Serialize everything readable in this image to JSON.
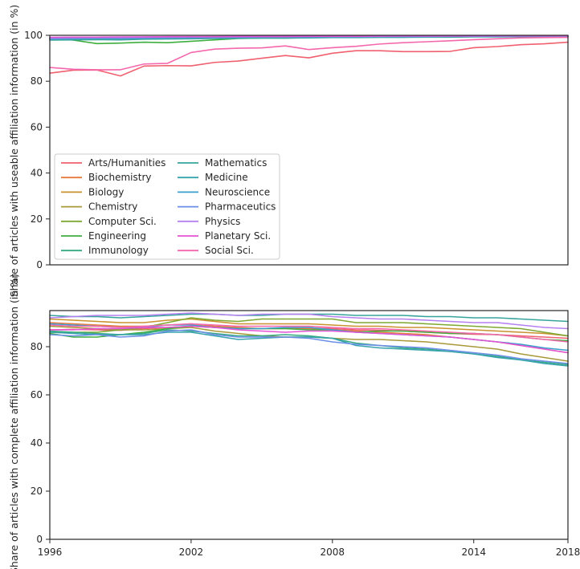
{
  "chart_data": [
    {
      "type": "line",
      "ylabel": "Share of articles with useable affiliation information (in %)",
      "xlabel": "",
      "xlim": [
        1996,
        2018
      ],
      "ylim": [
        0,
        100
      ],
      "yticks": [
        0,
        20,
        40,
        60,
        80,
        100
      ],
      "legend": "lower-left",
      "legend_columns": 2,
      "x": [
        1996,
        1997,
        1998,
        1999,
        2000,
        2001,
        2002,
        2003,
        2004,
        2005,
        2006,
        2007,
        2008,
        2009,
        2010,
        2011,
        2012,
        2013,
        2014,
        2015,
        2016,
        2017,
        2018
      ],
      "series": [
        {
          "name": "Arts/Humanities",
          "color": "#f0606f",
          "values": [
            83.5,
            84.8,
            84.9,
            82.3,
            86.6,
            86.8,
            86.7,
            88.2,
            88.8,
            90.0,
            91.2,
            90.2,
            92.2,
            93.3,
            93.3,
            92.9,
            92.9,
            93.0,
            94.6,
            95.1,
            95.9,
            96.3,
            97.0
          ]
        },
        {
          "name": "Biochemistry",
          "color": "#e57a3c",
          "values": [
            98.8,
            99.0,
            99.1,
            99.0,
            99.2,
            99.3,
            99.3,
            99.3,
            99.4,
            99.4,
            99.4,
            99.4,
            99.5,
            99.5,
            99.5,
            99.6,
            99.6,
            99.6,
            99.7,
            99.7,
            99.7,
            99.8,
            99.8
          ]
        },
        {
          "name": "Biology",
          "color": "#c9922e",
          "values": [
            98.6,
            98.8,
            98.9,
            98.8,
            99.0,
            99.1,
            99.1,
            99.2,
            99.3,
            99.3,
            99.3,
            99.4,
            99.4,
            99.4,
            99.5,
            99.5,
            99.5,
            99.6,
            99.6,
            99.6,
            99.7,
            99.7,
            99.7
          ]
        },
        {
          "name": "Chemistry",
          "color": "#a89a3a",
          "values": [
            98.4,
            98.6,
            98.7,
            98.7,
            98.9,
            99.0,
            99.0,
            99.1,
            99.2,
            99.2,
            99.3,
            99.3,
            99.4,
            99.4,
            99.4,
            99.5,
            99.5,
            99.5,
            99.6,
            99.6,
            99.6,
            99.7,
            99.7
          ]
        },
        {
          "name": "Computer Sci.",
          "color": "#7fa832",
          "values": [
            98.0,
            98.2,
            98.3,
            98.2,
            98.5,
            98.6,
            98.7,
            98.8,
            98.9,
            99.0,
            99.0,
            99.1,
            99.2,
            99.2,
            99.3,
            99.3,
            99.4,
            99.4,
            99.5,
            99.5,
            99.6,
            99.6,
            99.6
          ]
        },
        {
          "name": "Engineering",
          "color": "#3eae3e",
          "values": [
            98.6,
            97.9,
            96.4,
            96.6,
            97.0,
            96.8,
            97.4,
            98.0,
            98.6,
            98.8,
            98.8,
            99.0,
            99.1,
            99.2,
            99.3,
            99.3,
            99.4,
            99.4,
            99.5,
            99.5,
            99.6,
            99.6,
            99.6
          ]
        },
        {
          "name": "Immunology",
          "color": "#35aa82",
          "values": [
            98.9,
            99.0,
            99.1,
            99.1,
            99.2,
            99.3,
            99.3,
            99.4,
            99.4,
            99.5,
            99.5,
            99.5,
            99.6,
            99.6,
            99.6,
            99.6,
            99.7,
            99.7,
            99.7,
            99.7,
            99.8,
            99.8,
            99.8
          ]
        },
        {
          "name": "Mathematics",
          "color": "#36a49c",
          "values": [
            97.9,
            98.0,
            98.1,
            98.0,
            98.3,
            98.4,
            98.5,
            98.6,
            98.7,
            98.8,
            98.8,
            98.9,
            99.0,
            99.0,
            99.1,
            99.1,
            99.2,
            99.2,
            99.3,
            99.3,
            99.4,
            99.4,
            99.5
          ]
        },
        {
          "name": "Medicine",
          "color": "#38a3ad",
          "values": [
            98.3,
            98.4,
            98.5,
            98.5,
            98.7,
            98.8,
            98.8,
            98.9,
            99.0,
            99.0,
            99.1,
            99.1,
            99.2,
            99.2,
            99.3,
            99.3,
            99.3,
            99.4,
            99.4,
            99.5,
            99.5,
            99.5,
            99.6
          ]
        },
        {
          "name": "Neuroscience",
          "color": "#3a9fcc",
          "values": [
            98.7,
            98.9,
            99.0,
            98.9,
            99.1,
            99.2,
            99.2,
            99.3,
            99.3,
            99.4,
            99.4,
            99.4,
            99.5,
            99.5,
            99.5,
            99.6,
            99.6,
            99.6,
            99.7,
            99.7,
            99.7,
            99.8,
            99.8
          ]
        },
        {
          "name": "Pharmaceutics",
          "color": "#6c8ee8",
          "values": [
            98.5,
            98.7,
            98.8,
            98.7,
            98.9,
            99.0,
            99.1,
            99.1,
            99.2,
            99.3,
            99.3,
            99.3,
            99.4,
            99.4,
            99.5,
            99.5,
            99.5,
            99.6,
            99.6,
            99.6,
            99.7,
            99.7,
            99.7
          ]
        },
        {
          "name": "Physics",
          "color": "#b580ef",
          "values": [
            99.0,
            99.1,
            99.2,
            99.2,
            99.3,
            99.3,
            99.4,
            99.4,
            99.5,
            99.5,
            99.5,
            99.6,
            99.6,
            99.6,
            99.6,
            99.7,
            99.7,
            99.7,
            99.7,
            99.8,
            99.8,
            99.8,
            99.8
          ]
        },
        {
          "name": "Planetary Sci.",
          "color": "#e253d6",
          "values": [
            99.1,
            99.2,
            99.2,
            99.3,
            99.3,
            99.4,
            99.4,
            99.4,
            99.5,
            99.5,
            99.5,
            99.6,
            99.6,
            99.6,
            99.7,
            99.7,
            99.7,
            99.7,
            99.8,
            99.8,
            99.8,
            99.8,
            99.9
          ]
        },
        {
          "name": "Social Sci.",
          "color": "#f467ac",
          "values": [
            86.0,
            85.2,
            85.0,
            85.0,
            87.5,
            87.8,
            92.5,
            94.0,
            94.4,
            94.5,
            95.4,
            93.8,
            94.6,
            95.2,
            96.2,
            96.8,
            97.2,
            97.6,
            98.1,
            98.5,
            98.9,
            99.0,
            99.1
          ]
        }
      ]
    },
    {
      "type": "line",
      "ylabel": "Share of articles with complete affiliation information (in %)",
      "xlabel": "",
      "xlim": [
        1996,
        2018
      ],
      "ylim": [
        0,
        95
      ],
      "yticks": [
        0,
        20,
        40,
        60,
        80
      ],
      "xticks": [
        1996,
        2002,
        2008,
        2014,
        2018
      ],
      "x": [
        1996,
        1997,
        1998,
        1999,
        2000,
        2001,
        2002,
        2003,
        2004,
        2005,
        2006,
        2007,
        2008,
        2009,
        2010,
        2011,
        2012,
        2013,
        2014,
        2015,
        2016,
        2017,
        2018
      ],
      "series": [
        {
          "name": "Arts/Humanities",
          "color": "#f0606f",
          "values": [
            87.0,
            87.2,
            87.0,
            86.8,
            87.5,
            88.0,
            88.5,
            88.0,
            87.6,
            87.5,
            87.8,
            87.8,
            87.5,
            87.0,
            86.8,
            86.5,
            86.0,
            85.5,
            85.2,
            85.0,
            84.5,
            84.0,
            83.5
          ]
        },
        {
          "name": "Biochemistry",
          "color": "#e57a3c",
          "values": [
            90.0,
            89.5,
            89.0,
            88.5,
            88.5,
            89.0,
            89.5,
            88.5,
            88.0,
            87.5,
            87.5,
            87.5,
            87.0,
            86.5,
            86.0,
            85.5,
            85.0,
            84.0,
            83.0,
            82.0,
            80.5,
            79.0,
            77.5
          ]
        },
        {
          "name": "Biology",
          "color": "#c9922e",
          "values": [
            91.5,
            91.0,
            90.5,
            90.0,
            90.0,
            91.0,
            91.5,
            90.5,
            89.5,
            89.5,
            89.5,
            89.5,
            89.0,
            88.5,
            88.5,
            88.0,
            88.0,
            87.5,
            87.0,
            86.5,
            86.0,
            85.5,
            84.5
          ]
        },
        {
          "name": "Chemistry",
          "color": "#a89a3a",
          "values": [
            88.5,
            88.0,
            87.5,
            87.0,
            87.0,
            87.5,
            88.0,
            86.5,
            85.5,
            84.5,
            84.0,
            84.0,
            83.5,
            83.0,
            83.0,
            82.5,
            82.0,
            81.0,
            80.0,
            79.0,
            77.0,
            75.5,
            74.0
          ]
        },
        {
          "name": "Computer Sci.",
          "color": "#7fa832",
          "values": [
            86.0,
            86.0,
            86.0,
            87.0,
            88.0,
            90.0,
            92.0,
            91.0,
            90.5,
            91.5,
            91.5,
            91.5,
            91.5,
            90.0,
            90.0,
            90.0,
            89.5,
            89.0,
            88.5,
            88.0,
            87.5,
            86.0,
            84.5
          ]
        },
        {
          "name": "Engineering",
          "color": "#3eae3e",
          "values": [
            85.5,
            84.0,
            84.0,
            85.0,
            86.0,
            87.5,
            88.5,
            88.0,
            87.5,
            87.5,
            87.5,
            87.0,
            87.0,
            86.0,
            86.5,
            86.5,
            86.0,
            85.5,
            85.5,
            85.0,
            84.0,
            83.0,
            82.5
          ]
        },
        {
          "name": "Immunology",
          "color": "#35aa82",
          "values": [
            86.5,
            86.0,
            85.5,
            85.0,
            85.5,
            87.0,
            86.5,
            85.5,
            84.5,
            84.5,
            85.0,
            84.5,
            83.5,
            81.5,
            80.5,
            79.5,
            79.0,
            78.0,
            77.0,
            76.0,
            74.5,
            73.5,
            72.5
          ]
        },
        {
          "name": "Mathematics",
          "color": "#36a49c",
          "values": [
            93.0,
            92.5,
            92.5,
            92.0,
            92.5,
            93.0,
            93.5,
            93.5,
            93.0,
            93.0,
            93.5,
            93.5,
            93.5,
            93.0,
            93.0,
            93.0,
            92.5,
            92.5,
            92.0,
            92.0,
            91.5,
            91.0,
            90.5
          ]
        },
        {
          "name": "Medicine",
          "color": "#38a3ad",
          "values": [
            86.0,
            85.5,
            85.0,
            85.0,
            85.0,
            86.0,
            86.0,
            84.5,
            83.0,
            83.5,
            84.0,
            84.0,
            83.5,
            80.5,
            79.5,
            79.0,
            78.5,
            78.0,
            77.0,
            75.5,
            74.5,
            73.0,
            72.0
          ]
        },
        {
          "name": "Neuroscience",
          "color": "#3a9fcc",
          "values": [
            89.5,
            89.0,
            88.5,
            88.0,
            88.0,
            89.0,
            89.0,
            88.0,
            87.5,
            87.5,
            88.0,
            88.0,
            87.0,
            86.0,
            85.5,
            85.0,
            84.5,
            84.0,
            83.0,
            82.0,
            81.0,
            79.5,
            78.5
          ]
        },
        {
          "name": "Pharmaceutics",
          "color": "#6c8ee8",
          "values": [
            85.0,
            84.5,
            85.0,
            84.0,
            84.5,
            86.5,
            87.0,
            85.0,
            84.0,
            84.0,
            84.0,
            83.5,
            82.0,
            81.0,
            80.5,
            80.0,
            79.5,
            78.5,
            77.5,
            76.5,
            75.0,
            74.0,
            73.0
          ]
        },
        {
          "name": "Physics",
          "color": "#b580ef",
          "values": [
            92.0,
            92.5,
            93.0,
            93.0,
            93.0,
            93.5,
            94.0,
            93.5,
            93.0,
            93.5,
            93.5,
            93.5,
            92.5,
            92.0,
            91.5,
            91.5,
            91.0,
            90.5,
            90.0,
            90.0,
            89.0,
            88.0,
            87.5
          ]
        },
        {
          "name": "Planetary Sci.",
          "color": "#e253d6",
          "values": [
            87.0,
            87.0,
            87.5,
            87.5,
            88.0,
            88.0,
            88.5,
            88.0,
            87.0,
            86.5,
            86.0,
            86.5,
            86.5,
            86.0,
            85.5,
            85.0,
            84.5,
            84.0,
            83.0,
            82.0,
            80.5,
            79.0,
            77.5
          ]
        },
        {
          "name": "Social Sci.",
          "color": "#f467ac",
          "values": [
            89.0,
            88.5,
            88.5,
            88.0,
            88.5,
            89.0,
            89.5,
            89.0,
            88.5,
            88.5,
            88.5,
            88.5,
            88.0,
            87.5,
            87.5,
            87.0,
            86.5,
            86.0,
            85.5,
            85.0,
            84.0,
            83.0,
            82.0
          ]
        }
      ]
    }
  ]
}
